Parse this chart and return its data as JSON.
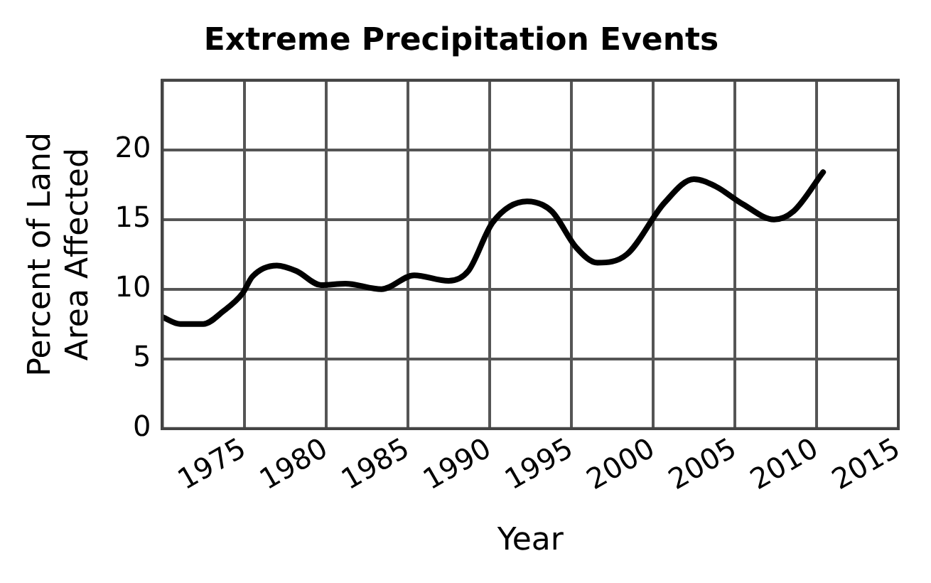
{
  "chart_data": {
    "type": "line",
    "title": "Extreme Precipitation Events",
    "xlabel": "Year",
    "ylabel": "Percent of Land Area Affected",
    "x": [
      1970,
      1971.1,
      1972.5,
      1973.7,
      1974.9,
      1975.5,
      1977,
      1978.2,
      1979.7,
      1981.2,
      1983.4,
      1985.4,
      1987.5,
      1988.7,
      1990.2,
      1992.3,
      1993.8,
      1995.3,
      1996.6,
      1998.4,
      2000.7,
      2002.5,
      2003.8,
      2005.5,
      2007.4,
      2008.6,
      2010.4
    ],
    "series": [
      {
        "color": "#000000",
        "values": [
          8.0,
          7.5,
          7.5,
          8.4,
          9.7,
          10.9,
          11.7,
          11.3,
          10.3,
          10.4,
          10.0,
          11.0,
          10.6,
          11.3,
          14.8,
          16.3,
          15.6,
          13.0,
          11.9,
          12.5,
          16.2,
          17.9,
          17.4,
          16.1,
          15.0,
          15.6,
          18.4
        ]
      }
    ],
    "xlim": [
      1970,
      2015
    ],
    "xticks": [
      {
        "value": 1970,
        "label": null
      },
      1975,
      1980,
      1985,
      1990,
      1995,
      2000,
      2005,
      2010,
      2015
    ],
    "ylim": [
      0,
      25
    ],
    "yticks": [
      0,
      5,
      10,
      15,
      20,
      {
        "value": 25,
        "label": null
      }
    ],
    "grid": true,
    "legend": false,
    "marker": "none",
    "line_style": "solid"
  }
}
